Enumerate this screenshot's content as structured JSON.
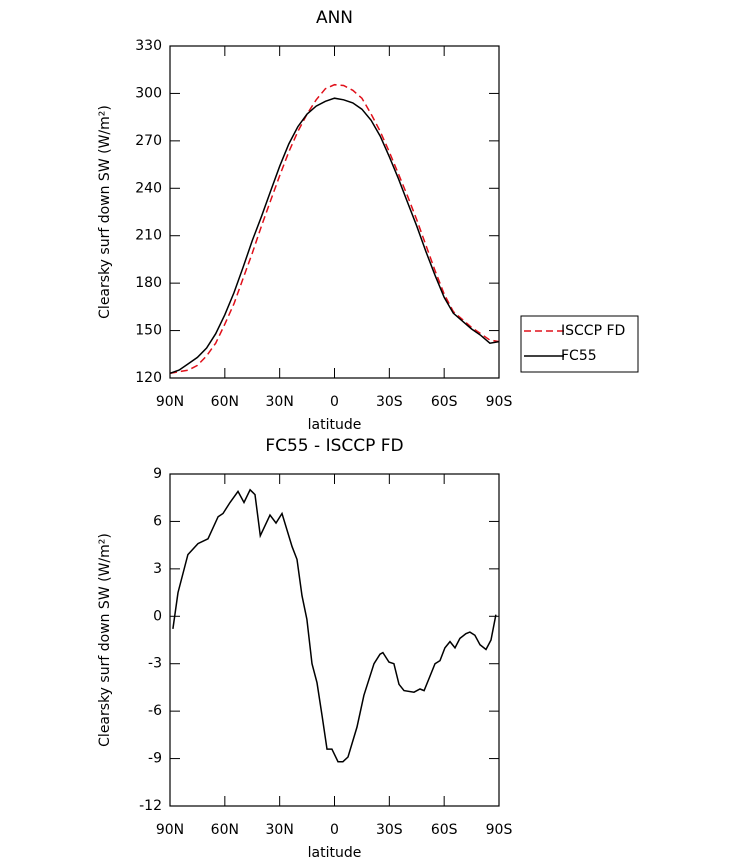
{
  "chart_data": [
    {
      "type": "line",
      "title": "ANN",
      "xlabel": "latitude",
      "ylabel": "Clearsky surf down SW (W/m²)",
      "x": [
        90,
        85,
        80,
        75,
        70,
        65,
        60,
        55,
        50,
        45,
        40,
        35,
        30,
        25,
        20,
        15,
        10,
        5,
        0,
        -5,
        -10,
        -15,
        -20,
        -25,
        -30,
        -35,
        -40,
        -45,
        -50,
        -55,
        -60,
        -65,
        -70,
        -75,
        -80,
        -85,
        -90
      ],
      "series": [
        {
          "name": "ISCCP FD",
          "color": "#e0101a",
          "style": "dashed",
          "values": [
            123,
            124,
            125,
            128,
            134,
            142,
            154,
            167,
            183,
            199,
            216,
            232,
            248,
            263,
            276,
            287,
            296,
            303,
            305.5,
            305,
            302,
            297,
            287,
            276,
            263,
            249,
            235,
            220,
            204,
            188,
            173,
            162,
            157,
            152,
            148,
            144,
            143
          ]
        },
        {
          "name": "FC55",
          "color": "#000000",
          "style": "solid",
          "values": [
            123,
            125,
            129,
            133,
            139,
            148,
            160,
            174,
            190,
            207,
            222,
            238,
            254,
            268,
            279,
            287,
            292,
            295,
            297,
            296,
            294,
            290,
            283,
            273,
            260,
            246,
            231,
            216,
            200,
            185,
            171,
            161,
            156,
            151,
            147,
            142,
            143
          ]
        }
      ],
      "xlim": [
        90,
        -90
      ],
      "xticks": [
        {
          "value": 90,
          "label": "90N"
        },
        {
          "value": 60,
          "label": "60N"
        },
        {
          "value": 30,
          "label": "30N"
        },
        0,
        {
          "value": -30,
          "label": "30S"
        },
        {
          "value": -60,
          "label": "60S"
        },
        {
          "value": -90,
          "label": "90S"
        }
      ],
      "ylim": [
        120,
        330
      ],
      "yticks": [
        120,
        150,
        180,
        210,
        240,
        270,
        300,
        330
      ],
      "legend": "right"
    },
    {
      "type": "line",
      "title": "FC55 - ISCCP FD",
      "xlabel": "latitude",
      "ylabel": "Clearsky surf down SW (W/m²)",
      "x": [
        88.4,
        85.6,
        80.2,
        74.7,
        69.2,
        63.7,
        61,
        57.2,
        52.8,
        49.5,
        46.2,
        43.5,
        40.6,
        35.3,
        32,
        28.7,
        23.2,
        20.5,
        17.8,
        15.1,
        12.3,
        9.6,
        6.8,
        4.1,
        1.4,
        -1.9,
        -4.6,
        -7.4,
        -12.3,
        -16.1,
        -21.6,
        -24.9,
        -26.5,
        -29.8,
        -32.5,
        -35.3,
        -38,
        -43.5,
        -46.8,
        -49,
        -52.2,
        -55,
        -57.7,
        -60.4,
        -63.2,
        -65.9,
        -68.6,
        -71.9,
        -74.1,
        -76.8,
        -79.6,
        -82.9,
        -85.6,
        -88.3
      ],
      "series": [
        {
          "name": "FC55 - ISCCP FD",
          "color": "#000000",
          "style": "solid",
          "values": [
            -0.8,
            1.5,
            3.9,
            4.6,
            4.9,
            6.3,
            6.5,
            7.2,
            7.9,
            7.2,
            8.0,
            7.7,
            5.1,
            6.4,
            5.9,
            6.5,
            4.4,
            3.6,
            1.3,
            -0.2,
            -3.0,
            -4.2,
            -6.3,
            -8.4,
            -8.4,
            -9.2,
            -9.2,
            -8.9,
            -7.0,
            -5.0,
            -3.0,
            -2.4,
            -2.3,
            -2.9,
            -3.0,
            -4.3,
            -4.7,
            -4.8,
            -4.6,
            -4.7,
            -3.8,
            -3.0,
            -2.8,
            -2.0,
            -1.6,
            -2.0,
            -1.4,
            -1.1,
            -1.0,
            -1.2,
            -1.8,
            -2.1,
            -1.5,
            0.1
          ]
        }
      ],
      "xlim": [
        90,
        -90
      ],
      "xticks": [
        {
          "value": 90,
          "label": "90N"
        },
        {
          "value": 60,
          "label": "60N"
        },
        {
          "value": 30,
          "label": "30N"
        },
        0,
        {
          "value": -30,
          "label": "30S"
        },
        {
          "value": -60,
          "label": "60S"
        },
        {
          "value": -90,
          "label": "90S"
        }
      ],
      "ylim": [
        -12,
        9
      ],
      "yticks": [
        -12,
        -9,
        -6,
        -3,
        0,
        3,
        6,
        9
      ]
    }
  ]
}
